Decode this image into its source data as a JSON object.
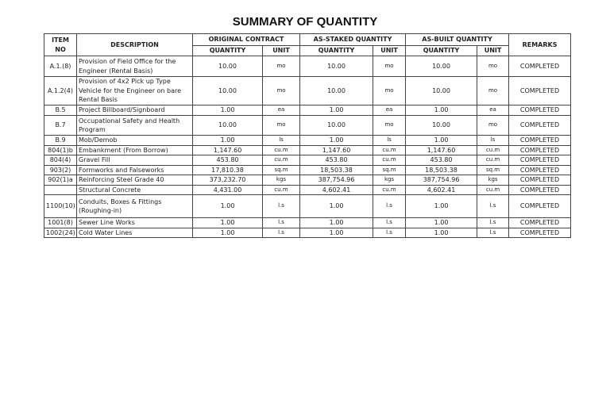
{
  "title": "SUMMARY OF QUANTITY",
  "headers": {
    "item_no": "ITEM NO",
    "description": "DESCRIPTION",
    "original": "ORIGINAL CONTRACT",
    "staked": "AS-STAKED QUANTITY",
    "built": "AS-BUILT QUANTITY",
    "remarks": "REMARKS",
    "quantity": "QUANTITY",
    "unit": "UNIT"
  },
  "rows": [
    {
      "item": "A.1.(8)",
      "desc": "Provision of Field Office for the Engineer (Rental Basis)",
      "oq": "10.00",
      "ou": "mo",
      "sq": "10.00",
      "su": "mo",
      "bq": "10.00",
      "bu": "mo",
      "remarks": "COMPLETED"
    },
    {
      "item": "A.1.2(4)",
      "desc": "Provision of 4x2 Pick up Type Vehicle for the Engineer on bare Rental Basis",
      "oq": "10.00",
      "ou": "mo",
      "sq": "10.00",
      "su": "mo",
      "bq": "10.00",
      "bu": "mo",
      "remarks": "COMPLETED"
    },
    {
      "item": "B.5",
      "desc": "Project Billboard/Signboard",
      "oq": "1.00",
      "ou": "ea",
      "sq": "1.00",
      "su": "ea",
      "bq": "1.00",
      "bu": "ea",
      "remarks": "COMPLETED"
    },
    {
      "item": "B.7",
      "desc": "Occupational Safety and Health Program",
      "oq": "10.00",
      "ou": "mo",
      "sq": "10.00",
      "su": "mo",
      "bq": "10.00",
      "bu": "mo",
      "remarks": "COMPLETED"
    },
    {
      "item": "B.9",
      "desc": "Mob/Demob",
      "oq": "1.00",
      "ou": "ls",
      "sq": "1.00",
      "su": "ls",
      "bq": "1.00",
      "bu": "ls",
      "remarks": "COMPLETED"
    },
    {
      "item": "804(1)b",
      "desc": "Embankment (From Borrow)",
      "oq": "1,147.60",
      "ou": "cu.m",
      "sq": "1,147.60",
      "su": "cu.m",
      "bq": "1,147.60",
      "bu": "cu.m",
      "remarks": "COMPLETED"
    },
    {
      "item": "804(4)",
      "desc": "Gravel Fill",
      "oq": "453.80",
      "ou": "cu.m",
      "sq": "453.80",
      "su": "cu.m",
      "bq": "453.80",
      "bu": "cu.m",
      "remarks": "COMPLETED"
    },
    {
      "item": "903(2)",
      "desc": "Formworks and Falseworks",
      "oq": "17,810.38",
      "ou": "sq.m",
      "sq": "18,503.38",
      "su": "sq.m",
      "bq": "18,503.38",
      "bu": "sq.m",
      "remarks": "COMPLETED"
    },
    {
      "item": "902(1)a",
      "desc": "Reinforcing Steel Grade 40",
      "oq": "373,232.70",
      "ou": "kgs",
      "sq": "387,754.96",
      "su": "kgs",
      "bq": "387,754.96",
      "bu": "kgs",
      "remarks": "COMPLETED"
    },
    {
      "item": "",
      "desc": "Structural Concrete",
      "oq": "4,431.00",
      "ou": "cu.m",
      "sq": "4,602.41",
      "su": "cu.m",
      "bq": "4,602.41",
      "bu": "cu.m",
      "remarks": "COMPLETED"
    },
    {
      "item": "1100(10)",
      "desc": "Conduits, Boxes & Fittings (Roughing-in)",
      "oq": "1.00",
      "ou": "l.s",
      "sq": "1.00",
      "su": "l.s",
      "bq": "1.00",
      "bu": "l.s",
      "remarks": "COMPLETED"
    },
    {
      "item": "1001(8)",
      "desc": "Sewer Line Works",
      "oq": "1.00",
      "ou": "l.s",
      "sq": "1.00",
      "su": "l.s",
      "bq": "1.00",
      "bu": "l.s",
      "remarks": "COMPLETED"
    },
    {
      "item": "1002(24)",
      "desc": "Cold Water Lines",
      "oq": "1.00",
      "ou": "l.s",
      "sq": "1.00",
      "su": "l.s",
      "bq": "1.00",
      "bu": "l.s",
      "remarks": "COMPLETED"
    }
  ]
}
